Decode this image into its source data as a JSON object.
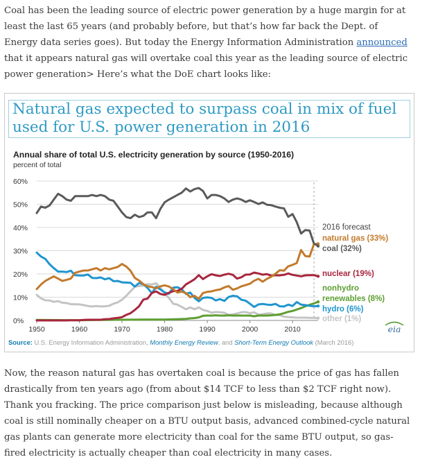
{
  "article": {
    "p1": {
      "before_link": "Coal has been the leading source of electric power generation by a huge margin for at least the last 65 years (and probably before, but that’s how far back the Dept. of Energy data series goes). But today the Energy Information Administration ",
      "link_text": "announced",
      "after_link": " that it appears natural gas will overtake coal this year as the leading source of electric power generation> Here’s what the DoE chart looks like:"
    },
    "p2": "Now, the reason natural gas has overtaken coal is because the price of gas has fallen drastically from ten years ago (from about $14 TCF to less than $2 TCF right now). Thank you fracking. The price comparison just below is misleading, because although coal is still nominally cheaper on a BTU output basis, advanced combined-cycle natural gas plants can generate more electricity than coal for the same BTU output, so gas-fired electricity is actually cheaper than coal electricity in many cases."
  },
  "figure": {
    "banner_title": "Natural gas expected to surpass coal in mix of fuel used for U.S. power generation in 2016",
    "logo_text": "eia",
    "source": {
      "label": "Source:",
      "text1": " U.S. Energy Information Administration, ",
      "link1": "Monthly Energy Review",
      "text2": ", and ",
      "link2": "Short-Term Energy Outlook",
      "text3": " (March 2016)"
    }
  },
  "chart_data": {
    "type": "line",
    "title": "Annual share of total U.S. electricity generation by source (1950-2016)",
    "subtitle": "percent of total",
    "xlim": [
      1950,
      2016
    ],
    "ylim": [
      0,
      60
    ],
    "x_ticks": [
      1950,
      1960,
      1970,
      1980,
      1990,
      2000,
      2010
    ],
    "x_tick_labels": [
      "1950",
      "1960",
      "1970",
      "1980",
      "1990",
      "2000",
      "2010"
    ],
    "y_ticks": [
      0,
      10,
      20,
      30,
      40,
      50,
      60
    ],
    "y_tick_labels": [
      "0%",
      "10%",
      "20%",
      "30%",
      "40%",
      "50%",
      "60%"
    ],
    "grid": true,
    "forecast_year": 2016,
    "forecast_label": "2016 forecast",
    "colors": {
      "coal": "#5a5a5a",
      "natural_gas": "#c27a2c",
      "nuclear": "#a8263d",
      "renewables": "#5e9e32",
      "hydro": "#1f95cf",
      "other": "#c4c4c4"
    },
    "series": [
      {
        "key": "coal",
        "name": "coal (32%)",
        "x": [
          1950,
          1951,
          1952,
          1953,
          1954,
          1955,
          1956,
          1957,
          1958,
          1959,
          1960,
          1961,
          1962,
          1963,
          1964,
          1965,
          1966,
          1967,
          1968,
          1969,
          1970,
          1971,
          1972,
          1973,
          1974,
          1975,
          1976,
          1977,
          1978,
          1979,
          1980,
          1981,
          1982,
          1983,
          1984,
          1985,
          1986,
          1987,
          1988,
          1989,
          1990,
          1991,
          1992,
          1993,
          1994,
          1995,
          1996,
          1997,
          1998,
          1999,
          2000,
          2001,
          2002,
          2003,
          2004,
          2005,
          2006,
          2007,
          2008,
          2009,
          2010,
          2011,
          2012,
          2013,
          2014,
          2015,
          2016
        ],
        "values": [
          46.2,
          49,
          48.5,
          49.5,
          52,
          54.5,
          53.5,
          52,
          51.5,
          53.5,
          53.5,
          53.5,
          53.5,
          54,
          53.5,
          54,
          53.5,
          52,
          51.5,
          49,
          46.5,
          44.5,
          44,
          45.5,
          44.5,
          45,
          46.5,
          46.5,
          44,
          48,
          50.8,
          52,
          53,
          54,
          55,
          56.8,
          55.5,
          56.5,
          57,
          55.7,
          52.5,
          54,
          54,
          53.5,
          52.5,
          51,
          52,
          52.5,
          52,
          51,
          51.7,
          51,
          50.1,
          50.8,
          49.8,
          49.6,
          49,
          48.5,
          48.2,
          44.6,
          45.8,
          42.3,
          37.4,
          38.9,
          38.7,
          33.2,
          32
        ]
      },
      {
        "key": "natural_gas",
        "name": "natural gas (33%)",
        "x": [
          1950,
          1951,
          1952,
          1953,
          1954,
          1955,
          1956,
          1957,
          1958,
          1959,
          1960,
          1961,
          1962,
          1963,
          1964,
          1965,
          1966,
          1967,
          1968,
          1969,
          1970,
          1971,
          1972,
          1973,
          1974,
          1975,
          1976,
          1977,
          1978,
          1979,
          1980,
          1981,
          1982,
          1983,
          1984,
          1985,
          1986,
          1987,
          1988,
          1989,
          1990,
          1991,
          1992,
          1993,
          1994,
          1995,
          1996,
          1997,
          1998,
          1999,
          2000,
          2001,
          2002,
          2003,
          2004,
          2005,
          2006,
          2007,
          2008,
          2009,
          2010,
          2011,
          2012,
          2013,
          2014,
          2015,
          2016
        ],
        "values": [
          13.5,
          15.5,
          17,
          18,
          19,
          18,
          17,
          17.5,
          18,
          20.5,
          21,
          21.5,
          21.5,
          22,
          22.5,
          21.5,
          22.5,
          22,
          22.5,
          23,
          24.3,
          23.2,
          21.4,
          18.3,
          17.2,
          15.6,
          14.7,
          14.4,
          13.8,
          14.7,
          15.1,
          14.6,
          13.5,
          12,
          12.4,
          11.8,
          10,
          10.6,
          9.3,
          11.8,
          12.3,
          12.5,
          13,
          13.3,
          14.2,
          14.8,
          13.2,
          13.8,
          14.7,
          15.2,
          15.8,
          17.1,
          17.9,
          16.7,
          17.9,
          18.8,
          20.1,
          21.6,
          21.4,
          23.3,
          23.9,
          24.7,
          30.3,
          27.7,
          27.5,
          32.7,
          33
        ]
      },
      {
        "key": "nuclear",
        "name": "nuclear (19%)",
        "x": [
          1950,
          1956,
          1957,
          1958,
          1959,
          1960,
          1961,
          1962,
          1963,
          1964,
          1965,
          1966,
          1967,
          1968,
          1969,
          1970,
          1971,
          1972,
          1973,
          1974,
          1975,
          1976,
          1977,
          1978,
          1979,
          1980,
          1981,
          1982,
          1983,
          1984,
          1985,
          1986,
          1987,
          1988,
          1989,
          1990,
          1991,
          1992,
          1993,
          1994,
          1995,
          1996,
          1997,
          1998,
          1999,
          2000,
          2001,
          2002,
          2003,
          2004,
          2005,
          2006,
          2007,
          2008,
          2009,
          2010,
          2011,
          2012,
          2013,
          2014,
          2015,
          2016
        ],
        "values": [
          0,
          0,
          0,
          0.1,
          0.1,
          0.1,
          0.2,
          0.3,
          0.3,
          0.3,
          0.3,
          0.5,
          0.6,
          0.9,
          1.1,
          1.4,
          2.4,
          3.1,
          4.5,
          6.1,
          9,
          9.4,
          11.8,
          12.5,
          11.4,
          11,
          11.9,
          12.6,
          12.7,
          13.6,
          15.5,
          16.6,
          17.7,
          19.5,
          17.8,
          19,
          19.9,
          19.4,
          19.1,
          19.7,
          20.1,
          19.6,
          18,
          18.6,
          19.7,
          19.8,
          20.6,
          20.2,
          19.7,
          19.9,
          19.3,
          19.4,
          19.4,
          19.6,
          20.2,
          19.6,
          19.3,
          19,
          19.4,
          19.5,
          19.5,
          19
        ]
      },
      {
        "key": "renewables",
        "name": "nonhydro renewables (8%)",
        "x": [
          1950,
          1960,
          1970,
          1975,
          1980,
          1984,
          1985,
          1986,
          1987,
          1988,
          1989,
          1990,
          1991,
          1992,
          1993,
          1994,
          1995,
          1996,
          1997,
          1998,
          1999,
          2000,
          2001,
          2002,
          2003,
          2004,
          2005,
          2006,
          2007,
          2008,
          2009,
          2010,
          2011,
          2012,
          2013,
          2014,
          2015,
          2016
        ],
        "values": [
          0.2,
          0.1,
          0.3,
          0.4,
          0.4,
          0.6,
          0.7,
          0.9,
          1,
          1.3,
          2,
          2.1,
          2.1,
          2.2,
          2.1,
          2.1,
          2.2,
          2.1,
          2.1,
          2.1,
          2.1,
          2.1,
          1.8,
          2.1,
          2.1,
          2.1,
          2.2,
          2.4,
          2.6,
          3.1,
          3.7,
          4.1,
          4.7,
          5.3,
          6.1,
          6.7,
          7.3,
          8
        ]
      },
      {
        "key": "hydro",
        "name": "hydro (6%)",
        "x": [
          1950,
          1951,
          1952,
          1953,
          1954,
          1955,
          1956,
          1957,
          1958,
          1959,
          1960,
          1961,
          1962,
          1963,
          1964,
          1965,
          1966,
          1967,
          1968,
          1969,
          1970,
          1971,
          1972,
          1973,
          1974,
          1975,
          1976,
          1977,
          1978,
          1979,
          1980,
          1981,
          1982,
          1983,
          1984,
          1985,
          1986,
          1987,
          1988,
          1989,
          1990,
          1991,
          1992,
          1993,
          1994,
          1995,
          1996,
          1997,
          1998,
          1999,
          2000,
          2001,
          2002,
          2003,
          2004,
          2005,
          2006,
          2007,
          2008,
          2009,
          2010,
          2011,
          2012,
          2013,
          2014,
          2015,
          2016
        ],
        "values": [
          29.2,
          27.5,
          26.5,
          24.2,
          22.5,
          21,
          21,
          20.8,
          21.4,
          19.5,
          19.3,
          19.3,
          19.8,
          18.3,
          18.2,
          18.5,
          17.7,
          18.2,
          16.9,
          17,
          16.4,
          16.3,
          16.2,
          14.6,
          16.1,
          15.6,
          14,
          11.7,
          14.5,
          13.3,
          12.1,
          11.5,
          14.1,
          14.3,
          13.4,
          11.4,
          12,
          9.7,
          8.2,
          9.7,
          9.9,
          9.7,
          8.6,
          9.2,
          8.4,
          10.1,
          10.6,
          10.4,
          8.9,
          8.5,
          7.2,
          5.8,
          6.9,
          7.1,
          6.8,
          6.7,
          7.1,
          6.1,
          6,
          6.8,
          6.2,
          7.9,
          6.8,
          6.6,
          6.3,
          6.1,
          6.2
        ]
      },
      {
        "key": "other",
        "name": "other (1%)",
        "x": [
          1950,
          1951,
          1952,
          1953,
          1954,
          1955,
          1956,
          1957,
          1958,
          1959,
          1960,
          1961,
          1962,
          1963,
          1964,
          1965,
          1966,
          1967,
          1968,
          1969,
          1970,
          1971,
          1972,
          1973,
          1974,
          1975,
          1976,
          1977,
          1978,
          1979,
          1980,
          1981,
          1982,
          1983,
          1984,
          1985,
          1986,
          1987,
          1988,
          1989,
          1990,
          1991,
          1992,
          1993,
          1994,
          1995,
          1996,
          1997,
          1998,
          1999,
          2000,
          2001,
          2002,
          2003,
          2004,
          2005,
          2006,
          2007,
          2008,
          2009,
          2010,
          2011,
          2012,
          2013,
          2014,
          2015,
          2016
        ],
        "values": [
          11,
          9.5,
          8.7,
          8.6,
          8,
          8.3,
          7.6,
          7.5,
          7,
          7,
          6.9,
          6.6,
          6.2,
          6,
          6.2,
          6,
          6.1,
          6.3,
          7.2,
          7.8,
          8.9,
          10.6,
          12.5,
          14.5,
          14.8,
          15,
          15.6,
          15.5,
          16,
          14.1,
          11.7,
          9.7,
          7.2,
          6.8,
          5.8,
          4.8,
          5.6,
          4.8,
          5.6,
          4.5,
          4.1,
          3.3,
          3.6,
          3.5,
          3.3,
          2.4,
          2.6,
          3,
          3.5,
          3.6,
          3.1,
          3.5,
          2.5,
          2.7,
          3,
          3,
          2.3,
          2.3,
          1.6,
          1.4,
          1.3,
          1.2,
          1.2,
          1.2,
          1.1,
          1.1,
          1
        ]
      }
    ],
    "legend_labels": [
      {
        "key": "forecast",
        "text": "2016 forecast",
        "color": "#444444"
      },
      {
        "key": "natural_gas",
        "text": "natural gas (33%)",
        "color": "#c27a2c"
      },
      {
        "key": "coal",
        "text": "coal (32%)",
        "color": "#5a5a5a"
      },
      {
        "key": "nuclear",
        "text": "nuclear (19%)",
        "color": "#a8263d"
      },
      {
        "key": "renewables_1",
        "text": "nonhydro",
        "color": "#5e9e32"
      },
      {
        "key": "renewables_2",
        "text": "renewables (8%)",
        "color": "#5e9e32"
      },
      {
        "key": "hydro",
        "text": "hydro (6%)",
        "color": "#1f95cf"
      },
      {
        "key": "other",
        "text": "other (1%)",
        "color": "#c4c4c4"
      }
    ]
  }
}
